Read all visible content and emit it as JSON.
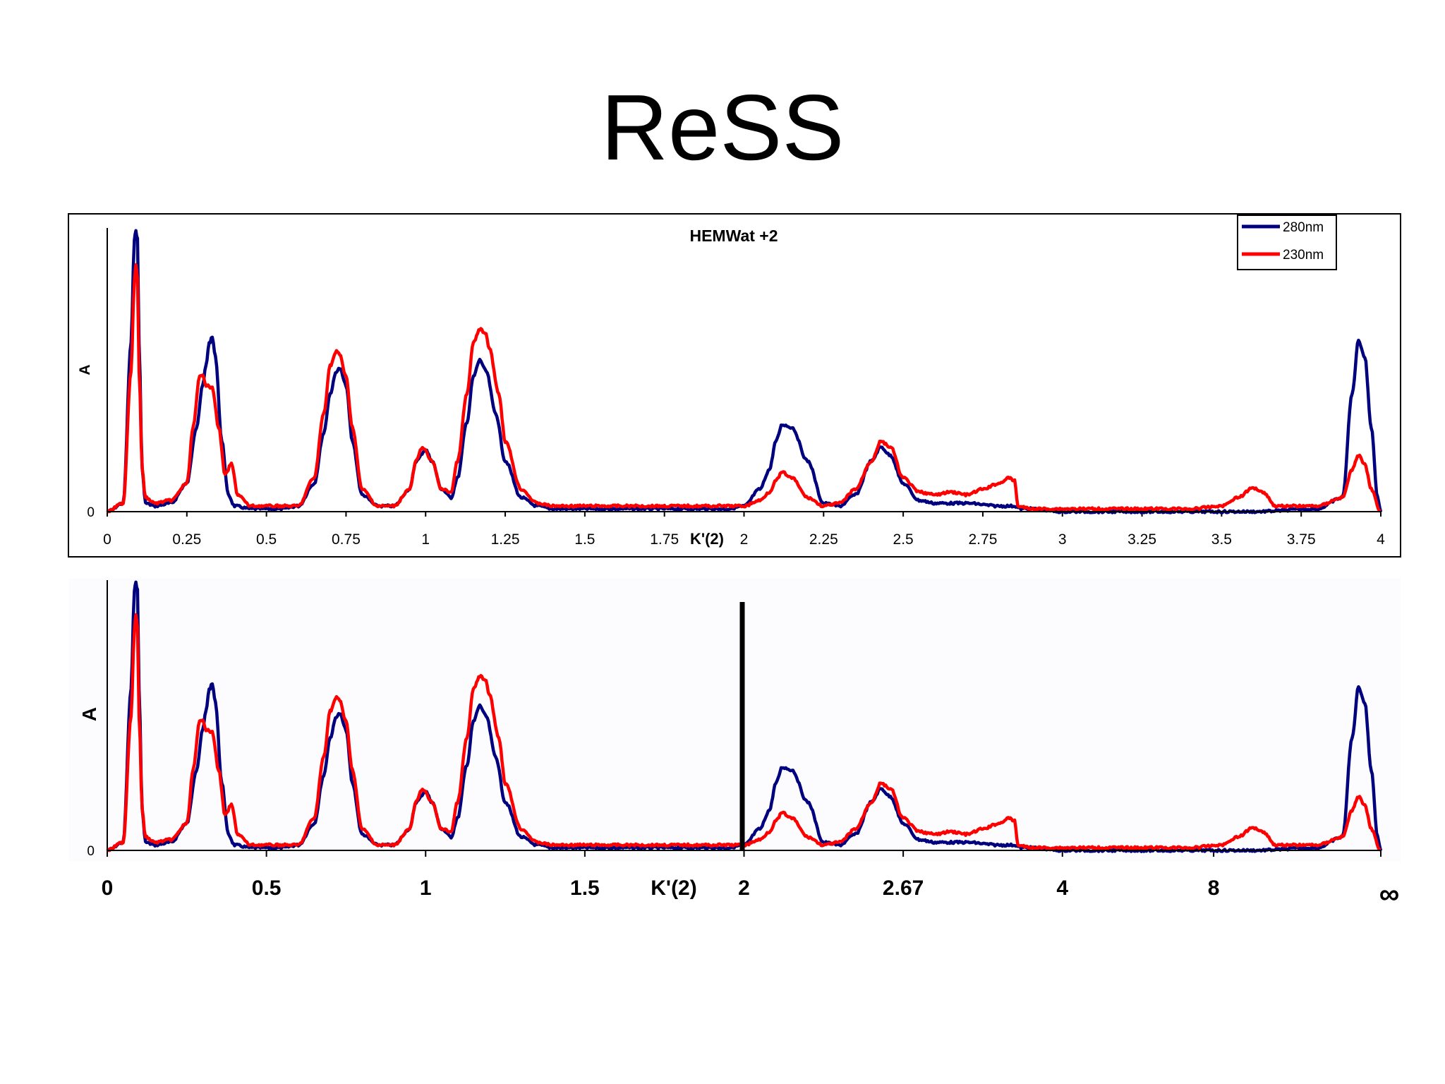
{
  "slide": {
    "title": "ReSS"
  },
  "chart_data": [
    {
      "type": "line",
      "title": "HEMWat +2",
      "xlabel": "K'(2)",
      "ylabel": "A",
      "xlim": [
        0,
        4
      ],
      "ylim": [
        0,
        1
      ],
      "x_ticks": [
        "0",
        "0.25",
        "0.5",
        "0.75",
        "1",
        "1.25",
        "1.5",
        "1.75",
        "2",
        "2.25",
        "2.5",
        "2.75",
        "3",
        "3.25",
        "3.5",
        "3.75",
        "4"
      ],
      "y_ticks": [
        "0"
      ],
      "legend": {
        "placement": "top-right",
        "entries": [
          "280nm",
          "230nm"
        ]
      },
      "series": [
        {
          "name": "280nm",
          "color": "#00007f",
          "x": [
            0,
            0.05,
            0.075,
            0.085,
            0.09,
            0.095,
            0.1,
            0.11,
            0.12,
            0.15,
            0.2,
            0.25,
            0.28,
            0.3,
            0.31,
            0.32,
            0.33,
            0.34,
            0.36,
            0.38,
            0.4,
            0.45,
            0.5,
            0.55,
            0.6,
            0.65,
            0.68,
            0.7,
            0.72,
            0.73,
            0.75,
            0.77,
            0.8,
            0.85,
            0.9,
            0.95,
            0.97,
            1,
            1.02,
            1.05,
            1.08,
            1.1,
            1.13,
            1.15,
            1.17,
            1.19,
            1.22,
            1.25,
            1.3,
            1.35,
            1.4,
            1.5,
            1.6,
            1.7,
            1.8,
            1.9,
            1.95,
            2,
            2.05,
            2.08,
            2.1,
            2.12,
            2.15,
            2.2,
            2.25,
            2.3,
            2.35,
            2.4,
            2.43,
            2.46,
            2.5,
            2.55,
            2.6,
            2.7,
            2.8,
            2.85,
            2.87,
            2.9,
            3,
            3.2,
            3.4,
            3.6,
            3.8,
            3.88,
            3.91,
            3.93,
            3.95,
            3.97,
            3.99,
            4
          ],
          "y": [
            0,
            0.03,
            0.6,
            0.97,
            1.0,
            0.97,
            0.6,
            0.15,
            0.03,
            0.02,
            0.03,
            0.1,
            0.3,
            0.45,
            0.52,
            0.6,
            0.62,
            0.55,
            0.25,
            0.06,
            0.02,
            0.01,
            0.01,
            0.01,
            0.02,
            0.1,
            0.28,
            0.42,
            0.5,
            0.51,
            0.45,
            0.25,
            0.06,
            0.02,
            0.02,
            0.08,
            0.18,
            0.22,
            0.18,
            0.08,
            0.05,
            0.12,
            0.32,
            0.48,
            0.54,
            0.5,
            0.35,
            0.18,
            0.05,
            0.02,
            0.01,
            0.01,
            0.01,
            0.01,
            0.01,
            0.01,
            0.01,
            0.02,
            0.08,
            0.15,
            0.25,
            0.31,
            0.3,
            0.18,
            0.03,
            0.02,
            0.06,
            0.18,
            0.23,
            0.2,
            0.1,
            0.04,
            0.03,
            0.03,
            0.02,
            0.02,
            0.01,
            0.01,
            0.0,
            0.0,
            0.0,
            0.0,
            0.01,
            0.05,
            0.42,
            0.61,
            0.55,
            0.3,
            0.05,
            0.0
          ]
        },
        {
          "name": "230nm",
          "color": "#ff0000",
          "x": [
            0,
            0.05,
            0.075,
            0.085,
            0.09,
            0.095,
            0.1,
            0.11,
            0.12,
            0.15,
            0.2,
            0.25,
            0.27,
            0.29,
            0.3,
            0.31,
            0.33,
            0.35,
            0.37,
            0.39,
            0.41,
            0.45,
            0.5,
            0.55,
            0.6,
            0.65,
            0.68,
            0.7,
            0.72,
            0.73,
            0.75,
            0.77,
            0.8,
            0.85,
            0.9,
            0.95,
            0.97,
            0.99,
            1.02,
            1.05,
            1.08,
            1.1,
            1.13,
            1.15,
            1.17,
            1.19,
            1.2,
            1.23,
            1.25,
            1.3,
            1.35,
            1.4,
            1.5,
            1.6,
            1.7,
            1.8,
            1.9,
            2,
            2.05,
            2.08,
            2.1,
            2.12,
            2.15,
            2.2,
            2.25,
            2.3,
            2.35,
            2.4,
            2.43,
            2.46,
            2.5,
            2.55,
            2.6,
            2.65,
            2.7,
            2.75,
            2.8,
            2.83,
            2.85,
            2.86,
            2.9,
            3,
            3.2,
            3.4,
            3.5,
            3.55,
            3.6,
            3.63,
            3.67,
            3.8,
            3.88,
            3.91,
            3.93,
            3.95,
            3.97,
            4
          ],
          "y": [
            0,
            0.03,
            0.5,
            0.82,
            0.88,
            0.83,
            0.5,
            0.15,
            0.05,
            0.03,
            0.04,
            0.1,
            0.3,
            0.48,
            0.49,
            0.45,
            0.44,
            0.3,
            0.13,
            0.17,
            0.06,
            0.02,
            0.02,
            0.02,
            0.02,
            0.12,
            0.35,
            0.52,
            0.57,
            0.56,
            0.48,
            0.3,
            0.08,
            0.02,
            0.02,
            0.08,
            0.18,
            0.23,
            0.18,
            0.08,
            0.07,
            0.18,
            0.42,
            0.6,
            0.65,
            0.63,
            0.58,
            0.42,
            0.25,
            0.08,
            0.03,
            0.02,
            0.02,
            0.02,
            0.02,
            0.02,
            0.02,
            0.02,
            0.04,
            0.07,
            0.11,
            0.14,
            0.12,
            0.05,
            0.02,
            0.03,
            0.08,
            0.18,
            0.25,
            0.23,
            0.12,
            0.07,
            0.06,
            0.07,
            0.06,
            0.08,
            0.1,
            0.12,
            0.11,
            0.02,
            0.01,
            0.01,
            0.01,
            0.01,
            0.02,
            0.05,
            0.085,
            0.07,
            0.02,
            0.02,
            0.05,
            0.15,
            0.2,
            0.17,
            0.08,
            0.0
          ]
        }
      ]
    },
    {
      "type": "line",
      "title": "",
      "xlabel": "K'(2)",
      "ylabel": "A",
      "xlim": [
        0,
        4
      ],
      "ylim": [
        0,
        1
      ],
      "x_ticks": [
        "0",
        "0.5",
        "1",
        "1.5",
        "2",
        "2.67",
        "4",
        "8",
        "∞"
      ],
      "y_ticks": [
        "0"
      ],
      "annotations": [
        "vertical divider line at K'(2) = 2"
      ],
      "series": [
        {
          "name": "280nm",
          "color": "#00007f"
        },
        {
          "name": "230nm",
          "color": "#ff0000"
        }
      ]
    }
  ]
}
